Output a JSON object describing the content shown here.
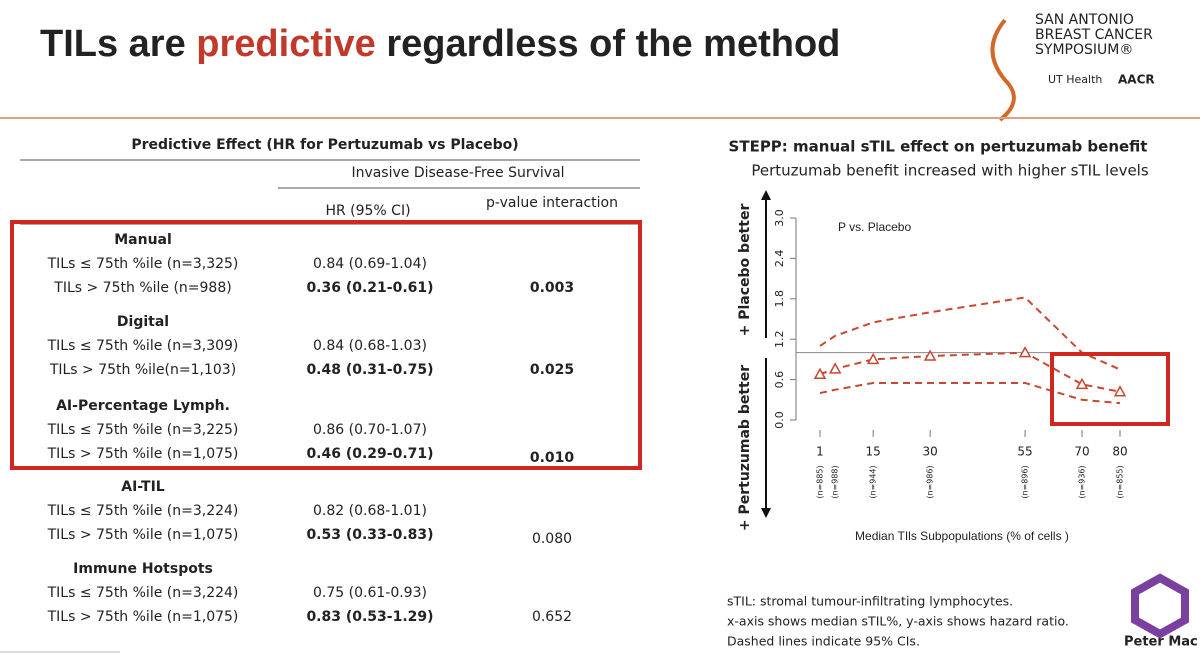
{
  "header": {
    "title_start": "TILs are ",
    "title_highlight": "predictive",
    "title_end": " regardless of the method",
    "logo_lines": [
      "SAN ANTONIO",
      "BREAST CANCER",
      "SYMPOSIUM®"
    ],
    "logo_ut": "UT Health",
    "logo_aacr": "AACR"
  },
  "table": {
    "title": "Predictive Effect (HR for Pertuzumab vs Placebo)",
    "group_header": "Invasive Disease-Free Survival",
    "columns": [
      "HR (95% CI)",
      "p-value interaction"
    ],
    "groups": [
      {
        "name": "Manual",
        "rows": [
          [
            "TILs ≤ 75th %ile (n=3,325)",
            "0.84 (0.69-1.04)"
          ],
          [
            "TILs > 75th %ile (n=988)",
            "0.36 (0.21-0.61)"
          ]
        ],
        "p": "0.003"
      },
      {
        "name": "Digital",
        "rows": [
          [
            "TILs ≤ 75th %ile (n=3,309)",
            "0.84 (0.68-1.03)"
          ],
          [
            "TILs > 75th %ile(n=1,103)",
            "0.48 (0.31-0.75)"
          ]
        ],
        "p": "0.025"
      },
      {
        "name": "AI-Percentage Lymph.",
        "rows": [
          [
            "TILs ≤ 75th %ile (n=3,225)",
            "0.86 (0.70-1.07)"
          ],
          [
            "TILs > 75th %ile (n=1,075)",
            "0.46 (0.29-0.71)"
          ]
        ],
        "p": "0.010"
      },
      {
        "name": "AI-TIL",
        "rows": [
          [
            "TILs ≤ 75th %ile (n=3,224)",
            "0.82 (0.68-1.01)"
          ],
          [
            "TILs > 75th %ile (n=1,075)",
            "0.53 (0.33-0.83)"
          ]
        ],
        "p": "0.080"
      },
      {
        "name": "Immune Hotspots",
        "rows": [
          [
            "TILs ≤ 75th %ile (n=3,224)",
            "0.75 (0.61-0.93)"
          ],
          [
            "TILs > 75th %ile (n=1,075)",
            "0.83 (0.53-1.29)"
          ]
        ],
        "p": "0.652"
      }
    ]
  },
  "chart_data": {
    "type": "line",
    "title": "STEPP: manual sTIL effect on pertuzumab benefit",
    "subtitle": "Pertuzumab benefit increased with higher sTIL levels",
    "annotation": "P vs. Placebo",
    "xlabel": "Median TIls Subpopulations (% of cells )",
    "ylabel_top": "+ Placebo better",
    "ylabel_bottom": "+ Pertuzumab better",
    "x": [
      1,
      5,
      15,
      30,
      55,
      70,
      80
    ],
    "x_sublabels": [
      "(n=885)",
      "(n=988)",
      "(n=944)",
      "(n=986)",
      "(n=896)",
      "(n=936)",
      "(n=855)"
    ],
    "xlim": [
      1,
      80
    ],
    "xticks": [
      1,
      15,
      30,
      55,
      70,
      80
    ],
    "ylim": [
      0,
      3
    ],
    "yticks": [
      {
        "value": 0,
        "label": "0.0"
      },
      0.6,
      1.2,
      1.8,
      2.4,
      {
        "value": 3,
        "label": "3.0"
      }
    ],
    "reference_line": 1,
    "color": "#c8472f",
    "series": [
      {
        "values": [
          0.68,
          0.76,
          0.9,
          0.95,
          1.0,
          0.53,
          0.42
        ]
      },
      {
        "values": [
          1.1,
          1.25,
          1.45,
          1.6,
          1.82,
          1.0,
          0.75
        ]
      },
      {
        "values": [
          0.4,
          0.45,
          0.55,
          0.55,
          0.55,
          0.3,
          0.25
        ]
      }
    ]
  },
  "footnote": [
    "sTIL: stromal tumour-infiltrating lymphocytes.",
    "x-axis shows median sTIL%, y-axis shows hazard ratio.",
    "Dashed lines indicate 95% CIs."
  ],
  "logo_petermac": "Peter Mac"
}
